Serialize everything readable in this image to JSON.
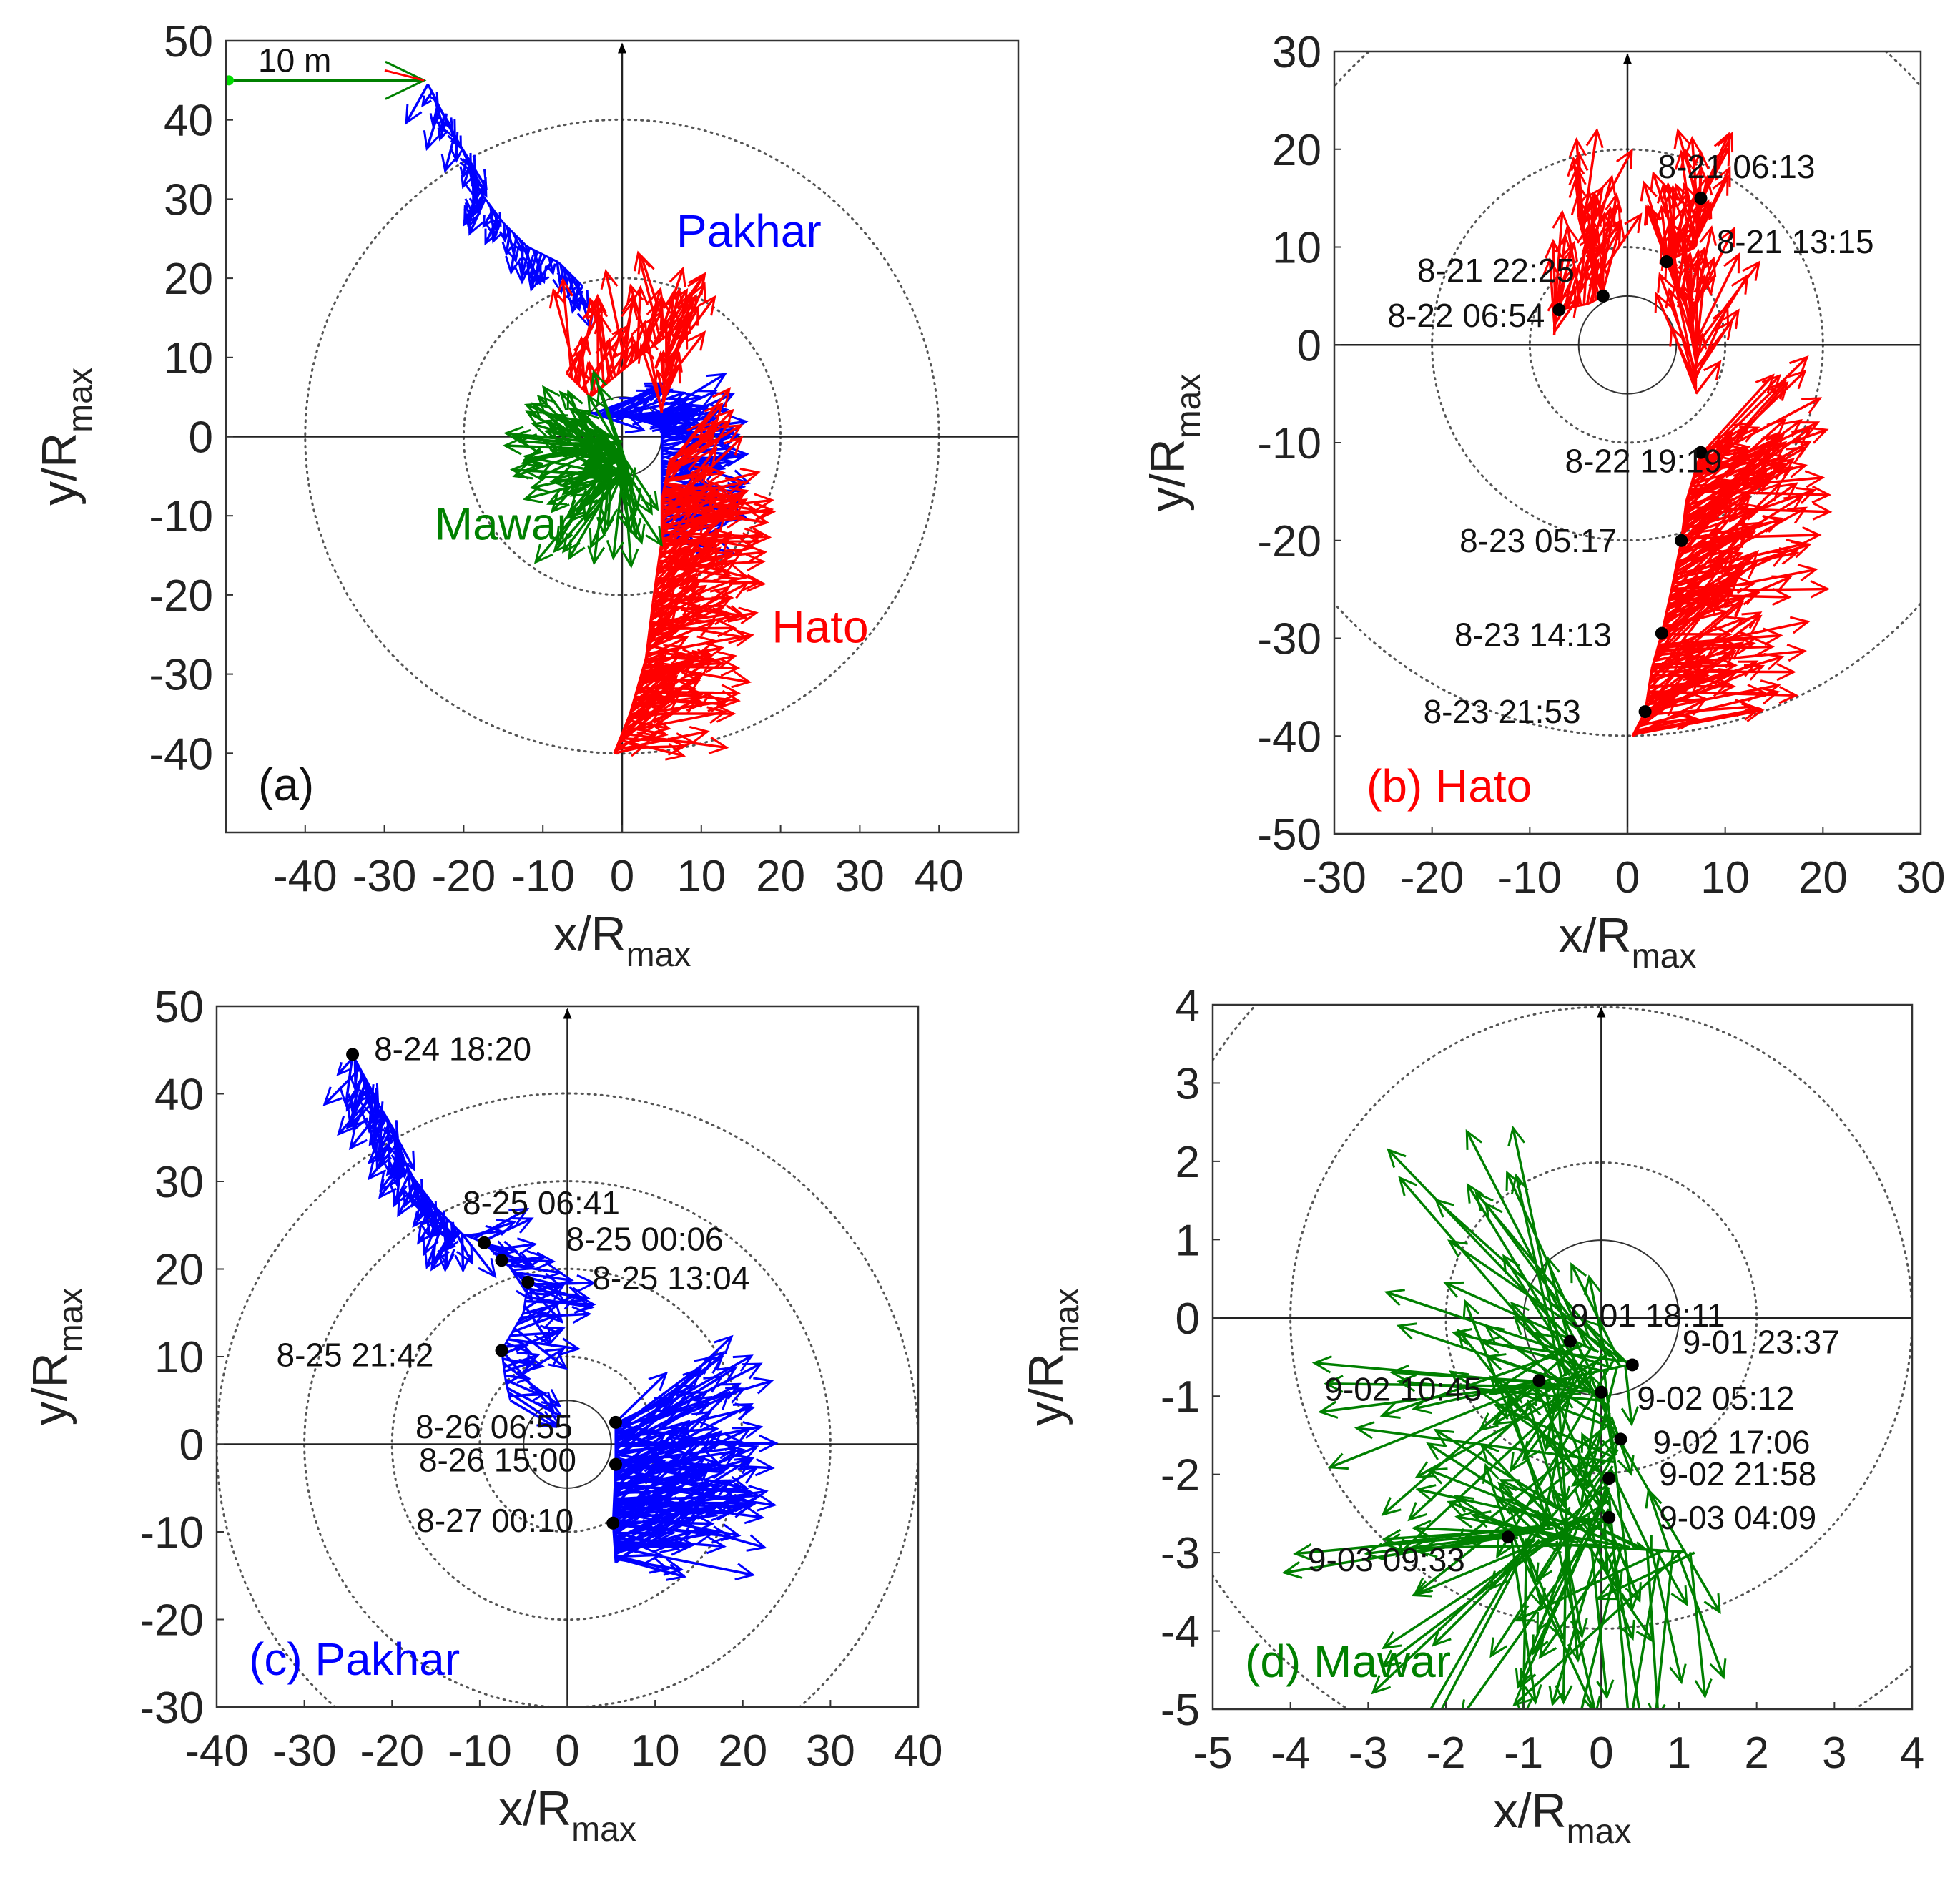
{
  "chart_data": [
    {
      "type": "scatter",
      "panel": "(a)",
      "title": "",
      "xlabel": "x/R",
      "xlabel_sub": "max",
      "ylabel": "y/R",
      "ylabel_sub": "max",
      "xlim": [
        -50,
        50
      ],
      "ylim": [
        -50,
        50
      ],
      "xticks": [
        -40,
        -30,
        -20,
        -10,
        0,
        10,
        20,
        30,
        40
      ],
      "yticks": [
        50,
        40,
        30,
        20,
        10,
        0,
        -10,
        -20,
        -30,
        -40
      ],
      "xtick_labels": [
        "-40",
        "-30",
        "-20",
        "-10",
        "0",
        "10",
        "20",
        "30",
        "40"
      ],
      "ytick_labels": [
        "50",
        "40",
        "30",
        "20",
        "10",
        "0",
        "-10",
        "-20",
        "-30",
        "-40"
      ],
      "rings": [
        5,
        20,
        40
      ],
      "scale_arrow": {
        "label": "10 m",
        "from": [
          -50,
          45
        ],
        "to": [
          -25,
          45
        ]
      },
      "legend": [
        {
          "name": "Pakhar",
          "color": "#0000ff",
          "at": [
            16,
            24
          ]
        },
        {
          "name": "Mawar",
          "color": "#008000",
          "at": [
            -15,
            -13
          ]
        },
        {
          "name": "Hato",
          "color": "#ff0000",
          "at": [
            25,
            -26
          ]
        }
      ],
      "series": [
        {
          "name": "Pakhar",
          "color": "#0000ff",
          "track": [
            [
              -24.5,
              44.5
            ],
            [
              -23,
              41.5
            ],
            [
              -20,
              36
            ],
            [
              -18,
              31
            ],
            [
              -15,
              27
            ],
            [
              -12,
              24
            ],
            [
              -8,
              22
            ],
            [
              -5,
              19
            ],
            [
              -6,
              14
            ],
            [
              -6,
              7
            ],
            [
              -4,
              3
            ],
            [
              5,
              2
            ],
            [
              5,
              -2
            ],
            [
              5,
              -6
            ],
            [
              5,
              -10
            ],
            [
              5,
              -13
            ]
          ]
        },
        {
          "name": "Hato",
          "color": "#ff0000",
          "track": [
            [
              -7,
              8
            ],
            [
              -4,
              5
            ],
            [
              2,
              10
            ],
            [
              6,
              13
            ],
            [
              5,
              3
            ],
            [
              6,
              -3
            ],
            [
              5,
              -8
            ],
            [
              5,
              -13
            ],
            [
              4,
              -20
            ],
            [
              3,
              -28
            ],
            [
              1,
              -35
            ],
            [
              -1,
              -40
            ]
          ]
        },
        {
          "name": "Mawar",
          "color": "#008000",
          "track": [
            [
              0,
              -0.3
            ],
            [
              -0.4,
              -0.3
            ],
            [
              -0.8,
              -0.8
            ],
            [
              0,
              -1
            ],
            [
              0.2,
              -1.6
            ],
            [
              0.1,
              -2.1
            ],
            [
              0.1,
              -2.6
            ],
            [
              -1.2,
              -2.8
            ]
          ]
        }
      ]
    },
    {
      "type": "scatter",
      "panel": "(b) Hato",
      "title": "",
      "xlabel": "x/R",
      "xlabel_sub": "max",
      "ylabel": "y/R",
      "ylabel_sub": "max",
      "xlim": [
        -30,
        30
      ],
      "ylim": [
        -50,
        30
      ],
      "xticks": [
        -30,
        -20,
        -10,
        0,
        10,
        20,
        30
      ],
      "yticks": [
        30,
        20,
        10,
        0,
        -10,
        -20,
        -30,
        -40,
        -50
      ],
      "xtick_labels": [
        "-30",
        "-20",
        "-10",
        "0",
        "10",
        "20",
        "30"
      ],
      "ytick_labels": [
        "30",
        "20",
        "10",
        "0",
        "-10",
        "-20",
        "-30",
        "-40",
        "-50"
      ],
      "rings": [
        5,
        10,
        20,
        40
      ],
      "color": "#ff0000",
      "track": [
        [
          7.5,
          15
        ],
        [
          7,
          10
        ],
        [
          4,
          8.5
        ],
        [
          6,
          4
        ],
        [
          7,
          0
        ],
        [
          7,
          -5
        ],
        [
          7.5,
          -11
        ],
        [
          6,
          -16
        ],
        [
          5.5,
          -20
        ],
        [
          4.5,
          -25
        ],
        [
          3.5,
          -29.5
        ],
        [
          2.5,
          -33
        ],
        [
          1.8,
          -37.5
        ],
        [
          0.5,
          -40
        ]
      ],
      "track2": [
        [
          -5,
          13
        ],
        [
          -4,
          9
        ],
        [
          -2.5,
          5
        ],
        [
          -4,
          4.2
        ],
        [
          -7.5,
          3.5
        ],
        [
          -7.5,
          1
        ]
      ],
      "markers": [
        {
          "label": "8-21 06:13",
          "x": 7.5,
          "y": 15
        },
        {
          "label": "8-21 13:15",
          "x": 4,
          "y": 8.5
        },
        {
          "label": "8-21 22:25",
          "x": -2.5,
          "y": 5
        },
        {
          "label": "8-22 06:54",
          "x": -7,
          "y": 3.6
        },
        {
          "label": "8-22 19:19",
          "x": 7.5,
          "y": -11
        },
        {
          "label": "8-23 05:17",
          "x": 5.5,
          "y": -20
        },
        {
          "label": "8-23 14:13",
          "x": 3.5,
          "y": -29.5
        },
        {
          "label": "8-23 21:53",
          "x": 1.8,
          "y": -37.5
        }
      ]
    },
    {
      "type": "scatter",
      "panel": "(c) Pakhar",
      "title": "",
      "xlabel": "x/R",
      "xlabel_sub": "max",
      "ylabel": "y/R",
      "ylabel_sub": "max",
      "xlim": [
        -40,
        40
      ],
      "ylim": [
        -30,
        50
      ],
      "xticks": [
        -40,
        -30,
        -20,
        -10,
        0,
        10,
        20,
        30,
        40
      ],
      "yticks": [
        50,
        40,
        30,
        20,
        10,
        0,
        -10,
        -20,
        -30
      ],
      "xtick_labels": [
        "-40",
        "-30",
        "-20",
        "-10",
        "0",
        "10",
        "20",
        "30",
        "40"
      ],
      "ytick_labels": [
        "50",
        "40",
        "30",
        "20",
        "10",
        "0",
        "-10",
        "-20",
        "-30"
      ],
      "rings": [
        5,
        10,
        20,
        30,
        40
      ],
      "color": "#0000ff",
      "track": [
        [
          -24.5,
          44.5
        ],
        [
          -23,
          41.5
        ],
        [
          -20,
          36
        ],
        [
          -18,
          31
        ],
        [
          -15,
          27
        ],
        [
          -12,
          24
        ],
        [
          -9.5,
          23
        ],
        [
          -7.5,
          21
        ],
        [
          -4.5,
          18.5
        ],
        [
          -5,
          15
        ],
        [
          -7.5,
          10.7
        ],
        [
          -7,
          7
        ],
        [
          -6.5,
          5
        ]
      ],
      "track2": [
        [
          5.5,
          2.5
        ],
        [
          5.5,
          -2.3
        ],
        [
          5.2,
          -9
        ],
        [
          5.5,
          -13.5
        ]
      ],
      "markers": [
        {
          "label": "8-24 18:20",
          "x": -24.5,
          "y": 44.5
        },
        {
          "label": "8-25 06:41",
          "x": -9.5,
          "y": 23
        },
        {
          "label": "8-25 00:06",
          "x": -7.5,
          "y": 21
        },
        {
          "label": "8-25 13:04",
          "x": -4.5,
          "y": 18.5
        },
        {
          "label": "8-25 21:42",
          "x": -7.5,
          "y": 10.7
        },
        {
          "label": "8-26 06:55",
          "x": 5.5,
          "y": 2.5
        },
        {
          "label": "8-26 15:00",
          "x": 5.5,
          "y": -2.3
        },
        {
          "label": "8-27 00:10",
          "x": 5.2,
          "y": -9
        }
      ]
    },
    {
      "type": "scatter",
      "panel": "(d) Mawar",
      "title": "",
      "xlabel": "x/R",
      "xlabel_sub": "max",
      "ylabel": "y/R",
      "ylabel_sub": "max",
      "xlim": [
        -5,
        4
      ],
      "ylim": [
        -5,
        4
      ],
      "xticks": [
        -5,
        -4,
        -3,
        -2,
        -1,
        0,
        1,
        2,
        3,
        4
      ],
      "yticks": [
        4,
        3,
        2,
        1,
        0,
        -1,
        -2,
        -3,
        -4,
        -5
      ],
      "xtick_labels": [
        "-5",
        "-4",
        "-3",
        "-2",
        "-1",
        "0",
        "1",
        "2",
        "3",
        "4"
      ],
      "ytick_labels": [
        "4",
        "3",
        "2",
        "1",
        "0",
        "-1",
        "-2",
        "-3",
        "-4",
        "-5"
      ],
      "rings": [
        1,
        2,
        4,
        6
      ],
      "color": "#008000",
      "track": [
        [
          -0.4,
          -0.3
        ],
        [
          0.4,
          -0.6
        ],
        [
          -0.8,
          -0.8
        ],
        [
          0,
          -0.95
        ],
        [
          0.25,
          -1.55
        ],
        [
          0.1,
          -2.05
        ],
        [
          0.1,
          -2.55
        ],
        [
          -1.2,
          -2.8
        ],
        [
          1.2,
          -3
        ]
      ],
      "markers": [
        {
          "label": "9-01 18:11",
          "x": -0.4,
          "y": -0.3
        },
        {
          "label": "9-01 23:37",
          "x": 0.4,
          "y": -0.6
        },
        {
          "label": "9-02 10:45",
          "x": -0.8,
          "y": -0.8
        },
        {
          "label": "9-02 05:12",
          "x": 0,
          "y": -0.95
        },
        {
          "label": "9-02 17:06",
          "x": 0.25,
          "y": -1.55
        },
        {
          "label": "9-02 21:58",
          "x": 0.1,
          "y": -2.05
        },
        {
          "label": "9-03 04:09",
          "x": 0.1,
          "y": -2.55
        },
        {
          "label": "9-03 09:33",
          "x": -1.2,
          "y": -2.8
        }
      ]
    }
  ]
}
